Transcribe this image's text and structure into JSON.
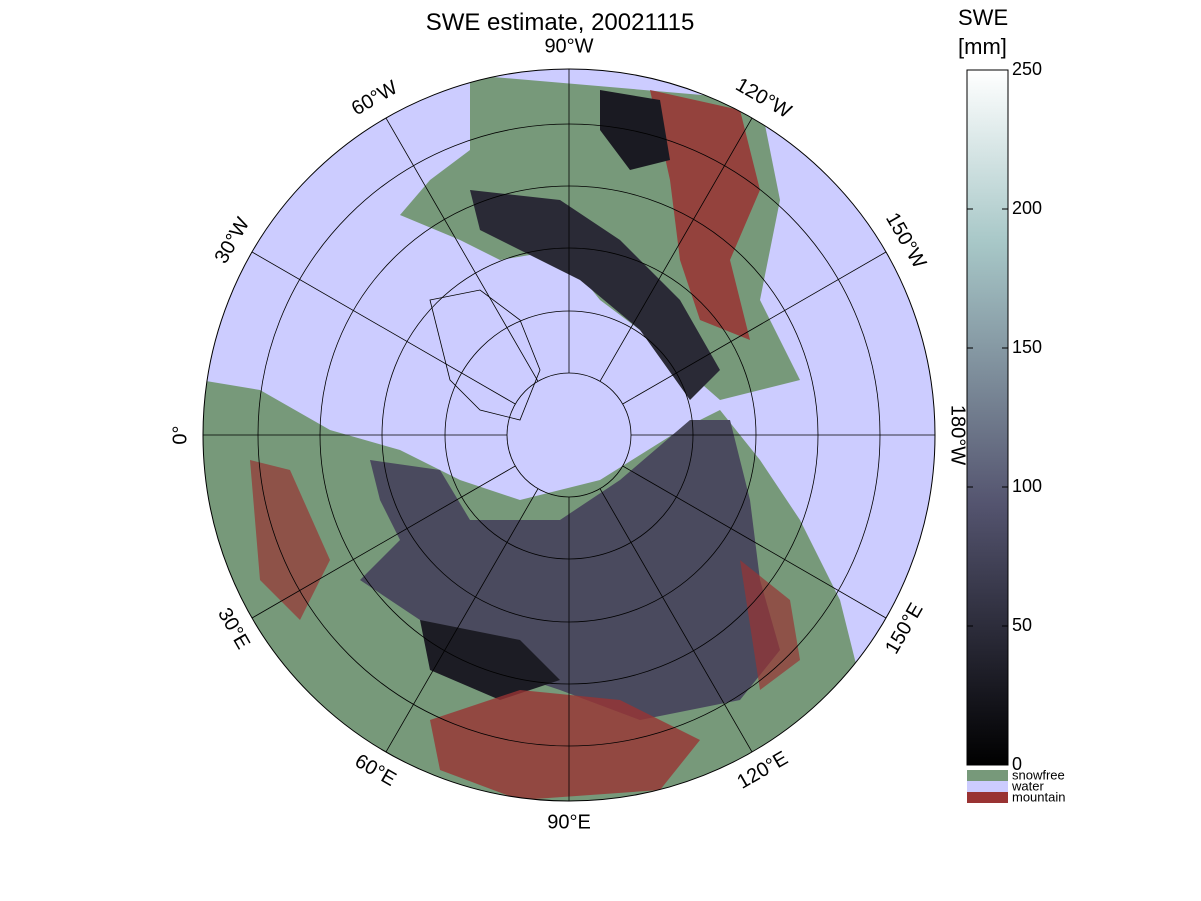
{
  "title": "SWE estimate, 20021115",
  "longitude_labels": [
    "0°",
    "30°E",
    "60°E",
    "90°E",
    "120°E",
    "150°E",
    "180°W",
    "150°W",
    "120°W",
    "90°W",
    "60°W",
    "30°W"
  ],
  "colorbar": {
    "title": [
      "SWE",
      "[mm]"
    ],
    "clim": [
      0,
      250
    ],
    "ticks": [
      0,
      50,
      100,
      150,
      200,
      250
    ]
  },
  "legend": [
    {
      "label": "snowfree",
      "color": "#77997a"
    },
    {
      "label": "water",
      "color": "#ccccff"
    },
    {
      "label": "mountain",
      "color": "#993333"
    }
  ]
}
